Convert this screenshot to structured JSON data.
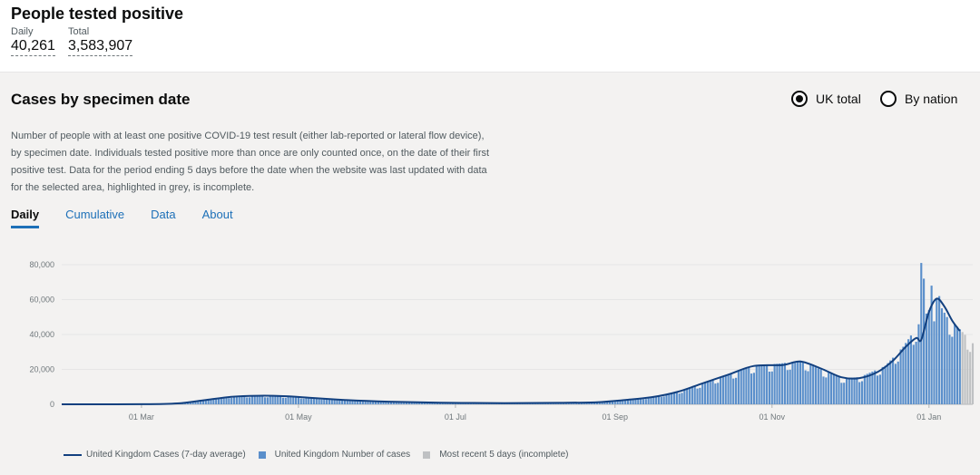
{
  "header": {
    "title": "People tested positive",
    "daily_label": "Daily",
    "daily_value": "40,261",
    "total_label": "Total",
    "total_value": "3,583,907"
  },
  "card": {
    "title": "Cases by specimen date",
    "radio_uk": "UK total",
    "radio_nation": "By nation",
    "selected": "UK total",
    "description": "Number of people with at least one positive COVID-19 test result (either lab-reported or lateral flow device), by specimen date. Individuals tested positive more than once are only counted once, on the date of their first positive test. Data for the period ending 5 days before the date when the website was last updated with data for the selected area, highlighted in grey, is incomplete.",
    "tabs": [
      "Daily",
      "Cumulative",
      "Data",
      "About"
    ],
    "active_tab": "Daily"
  },
  "colors": {
    "bars": "#5a8fcb",
    "line": "#12407f",
    "incomplete": "#bfc1c3"
  },
  "chart_data": {
    "type": "bar",
    "x_range": [
      "2020-01-30",
      "2021-01-18"
    ],
    "ylim": [
      0,
      80000
    ],
    "y_ticks": [
      "0",
      "20,000",
      "40,000",
      "60,000",
      "80,000"
    ],
    "x_ticks": [
      "01 Mar",
      "01 May",
      "01 Jul",
      "01 Sep",
      "01 Nov",
      "01 Jan"
    ],
    "x_tick_dates": [
      "2020-03-01",
      "2020-05-01",
      "2020-07-01",
      "2020-09-01",
      "2020-11-01",
      "2021-01-01"
    ],
    "bar_knots": [
      [
        "2020-01-30",
        0
      ],
      [
        "2020-03-01",
        50
      ],
      [
        "2020-03-15",
        600
      ],
      [
        "2020-03-25",
        2500
      ],
      [
        "2020-04-05",
        4500
      ],
      [
        "2020-04-15",
        5000
      ],
      [
        "2020-04-25",
        4600
      ],
      [
        "2020-05-05",
        3800
      ],
      [
        "2020-05-20",
        2500
      ],
      [
        "2020-06-05",
        1500
      ],
      [
        "2020-06-25",
        900
      ],
      [
        "2020-07-20",
        700
      ],
      [
        "2020-08-10",
        900
      ],
      [
        "2020-08-25",
        1200
      ],
      [
        "2020-09-05",
        2500
      ],
      [
        "2020-09-15",
        4000
      ],
      [
        "2020-09-25",
        7000
      ],
      [
        "2020-10-05",
        12000
      ],
      [
        "2020-10-15",
        17000
      ],
      [
        "2020-10-25",
        22000
      ],
      [
        "2020-11-05",
        23500
      ],
      [
        "2020-11-12",
        25000
      ],
      [
        "2020-11-20",
        20000
      ],
      [
        "2020-11-28",
        15000
      ],
      [
        "2020-12-05",
        15500
      ],
      [
        "2020-12-15",
        22000
      ],
      [
        "2020-12-22",
        33000
      ],
      [
        "2020-12-29",
        48000
      ],
      [
        "2021-01-04",
        60000
      ],
      [
        "2021-01-08",
        50000
      ],
      [
        "2021-01-13",
        43000
      ],
      [
        "2021-01-18",
        35000
      ]
    ],
    "highlights": [
      [
        "2020-12-29",
        81000
      ],
      [
        "2021-01-02",
        68000
      ],
      [
        "2021-01-05",
        62000
      ],
      [
        "2020-12-30",
        72000
      ]
    ],
    "incomplete_from": "2021-01-14",
    "series": [
      {
        "name": "United Kingdom Cases (7-day average)",
        "points": [
          [
            "2020-01-30",
            0
          ],
          [
            "2020-03-01",
            40
          ],
          [
            "2020-03-15",
            500
          ],
          [
            "2020-03-25",
            2300
          ],
          [
            "2020-04-05",
            4300
          ],
          [
            "2020-04-15",
            4900
          ],
          [
            "2020-04-25",
            4700
          ],
          [
            "2020-05-05",
            3800
          ],
          [
            "2020-05-20",
            2400
          ],
          [
            "2020-06-05",
            1500
          ],
          [
            "2020-06-25",
            900
          ],
          [
            "2020-07-20",
            700
          ],
          [
            "2020-08-10",
            850
          ],
          [
            "2020-08-25",
            1200
          ],
          [
            "2020-09-05",
            2500
          ],
          [
            "2020-09-15",
            4000
          ],
          [
            "2020-09-25",
            7000
          ],
          [
            "2020-10-05",
            12000
          ],
          [
            "2020-10-15",
            17000
          ],
          [
            "2020-10-25",
            22000
          ],
          [
            "2020-11-05",
            22500
          ],
          [
            "2020-11-12",
            24500
          ],
          [
            "2020-11-20",
            20500
          ],
          [
            "2020-11-28",
            15500
          ],
          [
            "2020-12-05",
            15000
          ],
          [
            "2020-12-12",
            18500
          ],
          [
            "2020-12-18",
            25000
          ],
          [
            "2020-12-23",
            33000
          ],
          [
            "2020-12-27",
            38000
          ],
          [
            "2020-12-29",
            37000
          ],
          [
            "2021-01-01",
            53000
          ],
          [
            "2021-01-04",
            60500
          ],
          [
            "2021-01-07",
            56000
          ],
          [
            "2021-01-10",
            48000
          ],
          [
            "2021-01-13",
            42000
          ]
        ]
      }
    ],
    "legend": [
      "United Kingdom Cases (7-day average)",
      "United Kingdom Number of cases",
      "Most recent 5 days (incomplete)"
    ]
  }
}
